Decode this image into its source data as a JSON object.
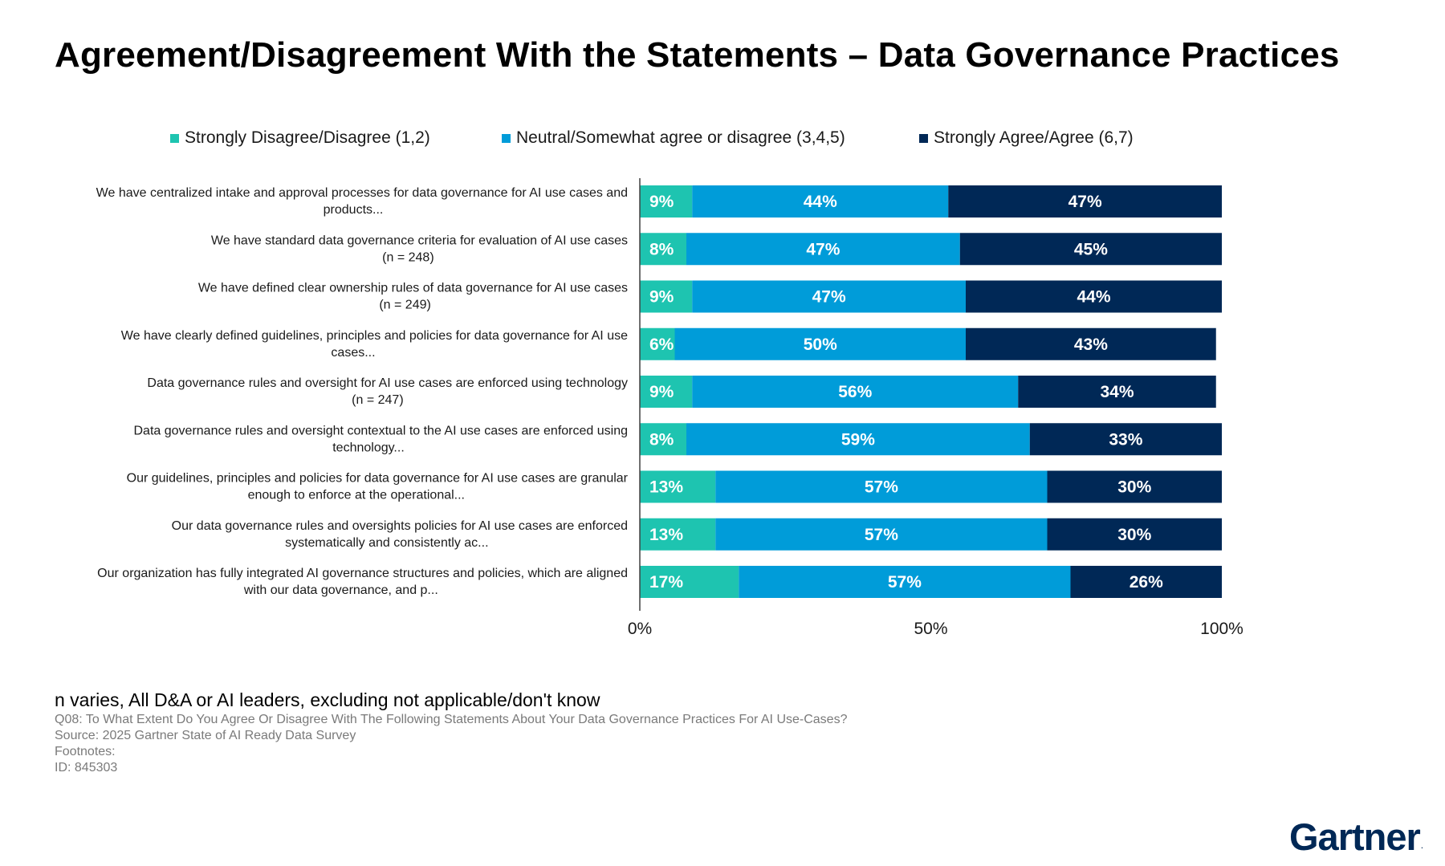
{
  "title": "Agreement/Disagreement With the Statements – Data Governance Practices",
  "chart_data": {
    "type": "bar",
    "orientation": "horizontal",
    "stacked": true,
    "value_unit": "%",
    "categories": [
      [
        "We have centralized intake and approval processes for data governance for AI use cases and",
        "products..."
      ],
      [
        "We have standard data governance criteria for evaluation of AI use cases",
        "(n = 248)"
      ],
      [
        "We have defined clear ownership rules of data governance for AI use cases",
        "(n = 249)"
      ],
      [
        "We have clearly defined guidelines, principles and policies for data governance for AI use",
        "cases..."
      ],
      [
        "Data governance rules and oversight for AI use cases are enforced using technology",
        "(n = 247)"
      ],
      [
        "Data governance rules and oversight contextual to the AI use cases are enforced using",
        "technology..."
      ],
      [
        "Our guidelines, principles and policies for data governance for AI use cases are granular",
        "enough to enforce at the operational..."
      ],
      [
        "Our data governance rules and oversights policies for AI use cases are enforced",
        "systematically and consistently ac..."
      ],
      [
        "Our organization has fully integrated AI governance structures and policies, which are aligned",
        "with our data governance, and p..."
      ]
    ],
    "series": [
      {
        "name": "Strongly Disagree/Disagree (1,2)",
        "color": "#1ec4b0",
        "values": [
          9,
          8,
          9,
          6,
          9,
          8,
          13,
          13,
          17
        ]
      },
      {
        "name": "Neutral/Somewhat agree or disagree (3,4,5)",
        "color": "#009cd9",
        "values": [
          44,
          47,
          47,
          50,
          56,
          59,
          57,
          57,
          57
        ]
      },
      {
        "name": "Strongly Agree/Agree (6,7)",
        "color": "#002856",
        "values": [
          47,
          45,
          44,
          43,
          34,
          33,
          30,
          30,
          26
        ]
      }
    ],
    "xlim": [
      0,
      100
    ],
    "x_ticks": [
      "0%",
      "50%",
      "100%"
    ],
    "legend_position": "top",
    "grid": false
  },
  "notes": {
    "main": "n varies, All D&A or AI leaders, excluding not applicable/don't know",
    "lines": [
      "Q08: To What Extent Do You Agree Or Disagree With The Following Statements About Your Data Governance Practices For AI Use-Cases?",
      "Source: 2025 Gartner State of AI Ready Data Survey",
      "Footnotes:",
      "ID: 845303"
    ]
  },
  "logo": {
    "text": "Gartner",
    "mark": "."
  }
}
